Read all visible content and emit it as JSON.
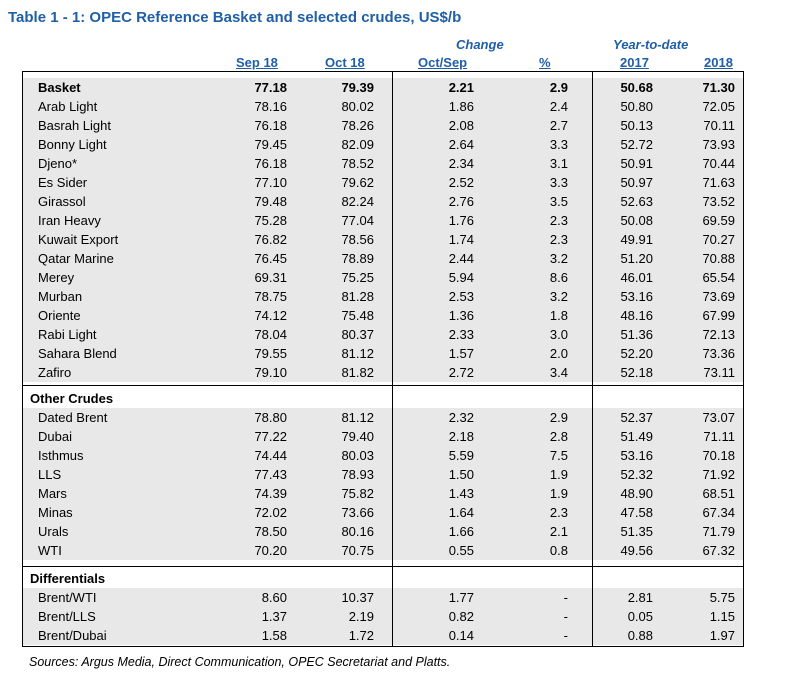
{
  "title": "Table 1 - 1: OPEC Reference Basket and selected crudes, US$/b",
  "headers": {
    "change": "Change",
    "ytd": "Year-to-date",
    "sep18": "Sep 18",
    "oct18": "Oct 18",
    "octsep": "Oct/Sep",
    "pct": "%",
    "y2017": "2017",
    "y2018": "2018"
  },
  "basket_rows": [
    {
      "name": "Basket",
      "sep": "77.18",
      "oct": "79.39",
      "chg": "2.21",
      "pct": "2.9",
      "y17": "50.68",
      "y18": "71.30"
    },
    {
      "name": "Arab Light",
      "sep": "78.16",
      "oct": "80.02",
      "chg": "1.86",
      "pct": "2.4",
      "y17": "50.80",
      "y18": "72.05"
    },
    {
      "name": "Basrah Light",
      "sep": "76.18",
      "oct": "78.26",
      "chg": "2.08",
      "pct": "2.7",
      "y17": "50.13",
      "y18": "70.11"
    },
    {
      "name": "Bonny Light",
      "sep": "79.45",
      "oct": "82.09",
      "chg": "2.64",
      "pct": "3.3",
      "y17": "52.72",
      "y18": "73.93"
    },
    {
      "name": "Djeno*",
      "sep": "76.18",
      "oct": "78.52",
      "chg": "2.34",
      "pct": "3.1",
      "y17": "50.91",
      "y18": "70.44"
    },
    {
      "name": "Es Sider",
      "sep": "77.10",
      "oct": "79.62",
      "chg": "2.52",
      "pct": "3.3",
      "y17": "50.97",
      "y18": "71.63"
    },
    {
      "name": "Girassol",
      "sep": "79.48",
      "oct": "82.24",
      "chg": "2.76",
      "pct": "3.5",
      "y17": "52.63",
      "y18": "73.52"
    },
    {
      "name": "Iran Heavy",
      "sep": "75.28",
      "oct": "77.04",
      "chg": "1.76",
      "pct": "2.3",
      "y17": "50.08",
      "y18": "69.59"
    },
    {
      "name": "Kuwait Export",
      "sep": "76.82",
      "oct": "78.56",
      "chg": "1.74",
      "pct": "2.3",
      "y17": "49.91",
      "y18": "70.27"
    },
    {
      "name": "Qatar Marine",
      "sep": "76.45",
      "oct": "78.89",
      "chg": "2.44",
      "pct": "3.2",
      "y17": "51.20",
      "y18": "70.88"
    },
    {
      "name": "Merey",
      "sep": "69.31",
      "oct": "75.25",
      "chg": "5.94",
      "pct": "8.6",
      "y17": "46.01",
      "y18": "65.54"
    },
    {
      "name": "Murban",
      "sep": "78.75",
      "oct": "81.28",
      "chg": "2.53",
      "pct": "3.2",
      "y17": "53.16",
      "y18": "73.69"
    },
    {
      "name": "Oriente",
      "sep": "74.12",
      "oct": "75.48",
      "chg": "1.36",
      "pct": "1.8",
      "y17": "48.16",
      "y18": "67.99"
    },
    {
      "name": "Rabi Light",
      "sep": "78.04",
      "oct": "80.37",
      "chg": "2.33",
      "pct": "3.0",
      "y17": "51.36",
      "y18": "72.13"
    },
    {
      "name": "Sahara Blend",
      "sep": "79.55",
      "oct": "81.12",
      "chg": "1.57",
      "pct": "2.0",
      "y17": "52.20",
      "y18": "73.36"
    },
    {
      "name": "Zafiro",
      "sep": "79.10",
      "oct": "81.82",
      "chg": "2.72",
      "pct": "3.4",
      "y17": "52.18",
      "y18": "73.11"
    }
  ],
  "other_label": "Other Crudes",
  "other_rows": [
    {
      "name": "Dated Brent",
      "sep": "78.80",
      "oct": "81.12",
      "chg": "2.32",
      "pct": "2.9",
      "y17": "52.37",
      "y18": "73.07"
    },
    {
      "name": "Dubai",
      "sep": "77.22",
      "oct": "79.40",
      "chg": "2.18",
      "pct": "2.8",
      "y17": "51.49",
      "y18": "71.11"
    },
    {
      "name": "Isthmus",
      "sep": "74.44",
      "oct": "80.03",
      "chg": "5.59",
      "pct": "7.5",
      "y17": "53.16",
      "y18": "70.18"
    },
    {
      "name": "LLS",
      "sep": "77.43",
      "oct": "78.93",
      "chg": "1.50",
      "pct": "1.9",
      "y17": "52.32",
      "y18": "71.92"
    },
    {
      "name": "Mars",
      "sep": "74.39",
      "oct": "75.82",
      "chg": "1.43",
      "pct": "1.9",
      "y17": "48.90",
      "y18": "68.51"
    },
    {
      "name": "Minas",
      "sep": "72.02",
      "oct": "73.66",
      "chg": "1.64",
      "pct": "2.3",
      "y17": "47.58",
      "y18": "67.34"
    },
    {
      "name": "Urals",
      "sep": "78.50",
      "oct": "80.16",
      "chg": "1.66",
      "pct": "2.1",
      "y17": "51.35",
      "y18": "71.79"
    },
    {
      "name": "WTI",
      "sep": "70.20",
      "oct": "70.75",
      "chg": "0.55",
      "pct": "0.8",
      "y17": "49.56",
      "y18": "67.32"
    }
  ],
  "diff_label": "Differentials",
  "diff_rows": [
    {
      "name": "Brent/WTI",
      "sep": "8.60",
      "oct": "10.37",
      "chg": "1.77",
      "pct": "-",
      "y17": "2.81",
      "y18": "5.75"
    },
    {
      "name": "Brent/LLS",
      "sep": "1.37",
      "oct": "2.19",
      "chg": "0.82",
      "pct": "-",
      "y17": "0.05",
      "y18": "1.15"
    },
    {
      "name": "Brent/Dubai",
      "sep": "1.58",
      "oct": "1.72",
      "chg": "0.14",
      "pct": "-",
      "y17": "0.88",
      "y18": "1.97"
    }
  ],
  "source": "Sources:  Argus Media, Direct Communication, OPEC Secretariat and Platts."
}
